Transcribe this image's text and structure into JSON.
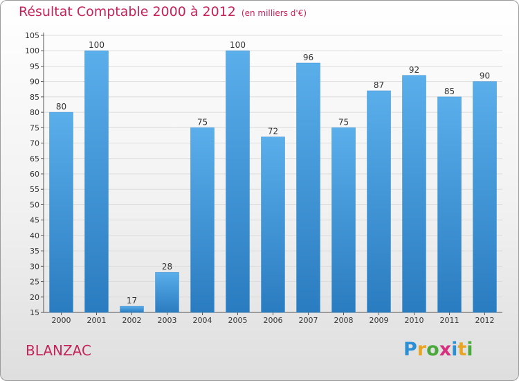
{
  "title": "Résultat Comptable 2000 à 2012",
  "unit": "(en milliers d'€)",
  "commune": "BLANZAC",
  "brand": {
    "letters": [
      "P",
      "r",
      "o",
      "x",
      "i",
      "t",
      "i"
    ],
    "colors": [
      "#2b8fd6",
      "#e8a423",
      "#4aa83c",
      "#d52f7e",
      "#2b8fd6",
      "#e8a423",
      "#4aa83c"
    ]
  },
  "colors": {
    "title": "#c4245a",
    "bar_light": "#5aaeea",
    "bar_dark": "#2a7cc0",
    "grid": "#dcdcdc"
  },
  "chart_data": {
    "type": "bar",
    "title": "Résultat Comptable 2000 à 2012",
    "categories": [
      "2000",
      "2001",
      "2002",
      "2003",
      "2004",
      "2005",
      "2006",
      "2007",
      "2008",
      "2009",
      "2010",
      "2011",
      "2012"
    ],
    "values": [
      80,
      100,
      17,
      28,
      75,
      100,
      72,
      96,
      75,
      87,
      92,
      85,
      90
    ],
    "ylim": [
      15,
      105
    ],
    "yticks": [
      15,
      20,
      25,
      30,
      35,
      40,
      45,
      50,
      55,
      60,
      65,
      70,
      75,
      80,
      85,
      90,
      95,
      100,
      105
    ],
    "grid": true,
    "data_labels": true
  }
}
